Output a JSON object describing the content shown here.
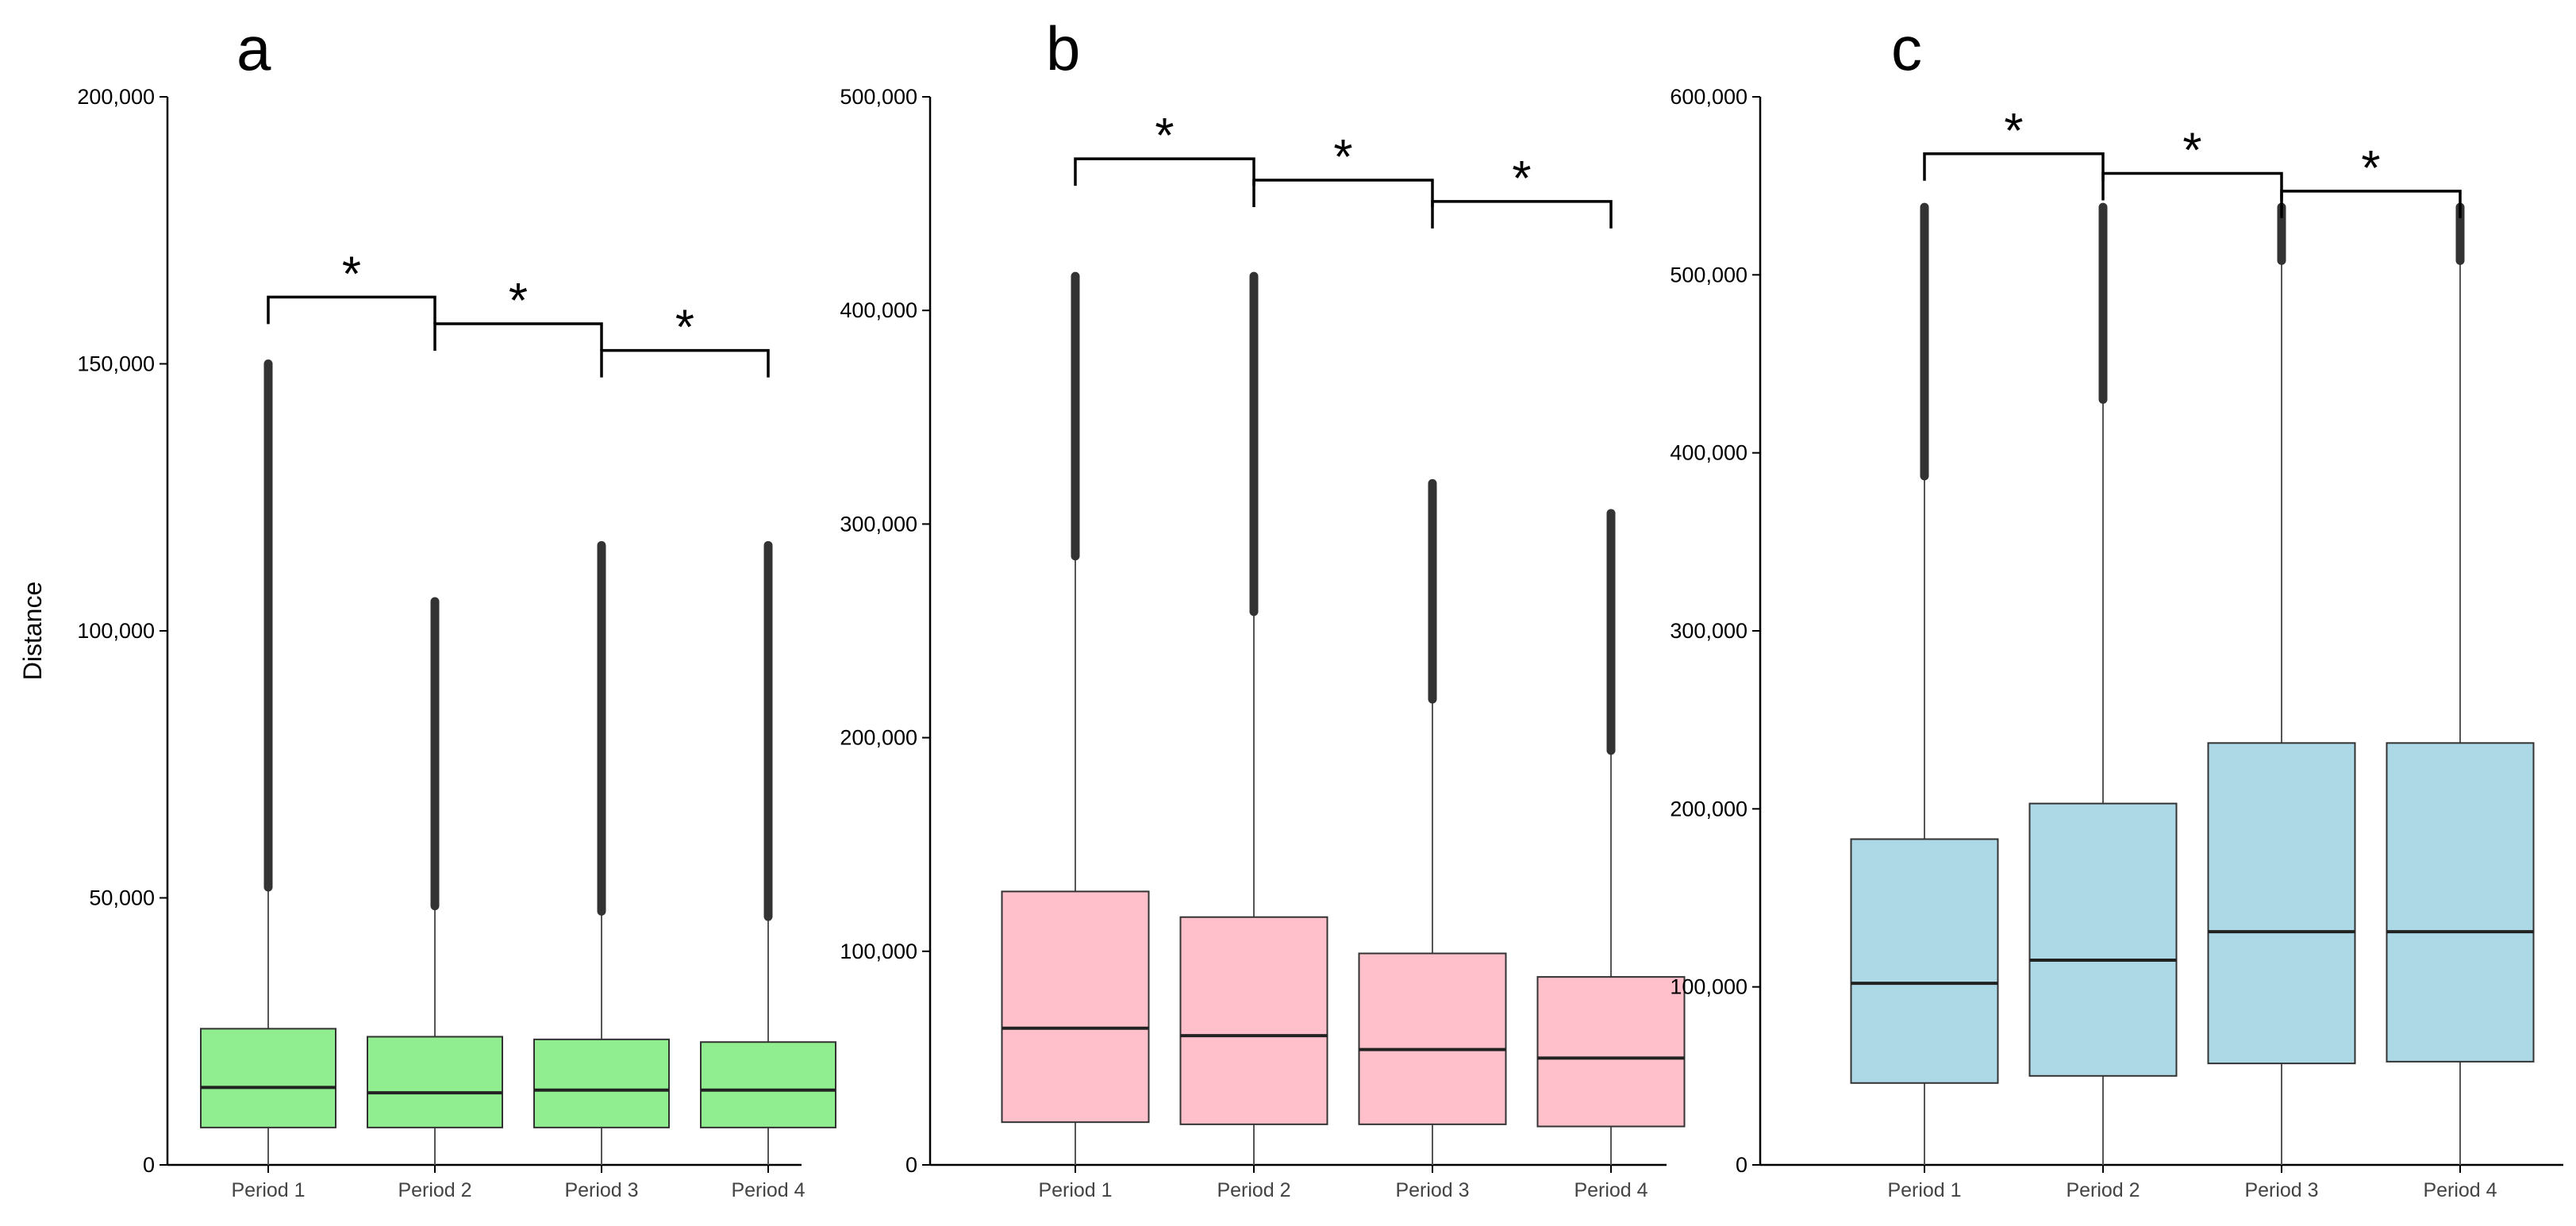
{
  "chart_data": [
    {
      "type": "boxplot",
      "panel_label": "a",
      "ylabel": "Distance",
      "ylim": [
        0,
        200000
      ],
      "yticks": [
        0,
        50000,
        100000,
        150000,
        200000
      ],
      "ytick_labels": [
        "0",
        "50,000",
        "100,000",
        "150,000",
        "200,000"
      ],
      "categories": [
        "Period 1",
        "Period 2",
        "Period 3",
        "Period 4"
      ],
      "fill_color": "#90EE90",
      "boxes": [
        {
          "q1": 7000,
          "median": 14500,
          "q3": 25500,
          "whisker_low": 0,
          "whisker_high": 52000,
          "outlier_high": 150000
        },
        {
          "q1": 7000,
          "median": 13500,
          "q3": 24000,
          "whisker_low": 0,
          "whisker_high": 48500,
          "outlier_high": 105500
        },
        {
          "q1": 7000,
          "median": 14000,
          "q3": 23500,
          "whisker_low": 0,
          "whisker_high": 47500,
          "outlier_high": 116000
        },
        {
          "q1": 7000,
          "median": 14000,
          "q3": 23000,
          "whisker_low": 0,
          "whisker_high": 46500,
          "outlier_high": 116000
        }
      ],
      "significance": [
        {
          "from": 0,
          "to": 1,
          "y": 162500,
          "label": "*"
        },
        {
          "from": 1,
          "to": 2,
          "y": 157500,
          "label": "*"
        },
        {
          "from": 2,
          "to": 3,
          "y": 152500,
          "label": "*"
        }
      ]
    },
    {
      "type": "boxplot",
      "panel_label": "b",
      "ylabel": "",
      "ylim": [
        0,
        500000
      ],
      "yticks": [
        0,
        100000,
        200000,
        300000,
        400000,
        500000
      ],
      "ytick_labels": [
        "0",
        "100,000",
        "200,000",
        "300,000",
        "400,000",
        "500,000"
      ],
      "categories": [
        "Period 1",
        "Period 2",
        "Period 3",
        "Period 4"
      ],
      "fill_color": "#FFC0CB",
      "boxes": [
        {
          "q1": 20000,
          "median": 64000,
          "q3": 128000,
          "whisker_low": 0,
          "whisker_high": 285000,
          "outlier_high": 416000
        },
        {
          "q1": 19000,
          "median": 60500,
          "q3": 116000,
          "whisker_low": 0,
          "whisker_high": 259000,
          "outlier_high": 416000
        },
        {
          "q1": 19000,
          "median": 54000,
          "q3": 99000,
          "whisker_low": 0,
          "whisker_high": 218000,
          "outlier_high": 319000
        },
        {
          "q1": 18000,
          "median": 50000,
          "q3": 88000,
          "whisker_low": 0,
          "whisker_high": 194000,
          "outlier_high": 305000
        }
      ],
      "significance": [
        {
          "from": 0,
          "to": 1,
          "y": 471000,
          "label": "*"
        },
        {
          "from": 1,
          "to": 2,
          "y": 461000,
          "label": "*"
        },
        {
          "from": 2,
          "to": 3,
          "y": 451000,
          "label": "*"
        }
      ]
    },
    {
      "type": "boxplot",
      "panel_label": "c",
      "ylabel": "",
      "ylim": [
        0,
        600000
      ],
      "yticks": [
        0,
        100000,
        200000,
        300000,
        400000,
        500000,
        600000
      ],
      "ytick_labels": [
        "0",
        "100,000",
        "200,000",
        "300,000",
        "400,000",
        "500,000",
        "600,000"
      ],
      "categories": [
        "Period 1",
        "Period 2",
        "Period 3",
        "Period 4"
      ],
      "fill_color": "#ADD8E6",
      "boxes": [
        {
          "q1": 46000,
          "median": 102000,
          "q3": 183000,
          "whisker_low": 0,
          "whisker_high": 387000,
          "outlier_high": 538000
        },
        {
          "q1": 50000,
          "median": 115000,
          "q3": 203000,
          "whisker_low": 0,
          "whisker_high": 430000,
          "outlier_high": 538000
        },
        {
          "q1": 57000,
          "median": 131000,
          "q3": 237000,
          "whisker_low": 0,
          "whisker_high": 508000,
          "outlier_high": 538000
        },
        {
          "q1": 58000,
          "median": 131000,
          "q3": 237000,
          "whisker_low": 0,
          "whisker_high": 508000,
          "outlier_high": 538000
        }
      ],
      "significance": [
        {
          "from": 0,
          "to": 1,
          "y": 568000,
          "label": "*"
        },
        {
          "from": 1,
          "to": 2,
          "y": 557000,
          "label": "*"
        },
        {
          "from": 2,
          "to": 3,
          "y": 547000,
          "label": "*"
        }
      ]
    }
  ]
}
